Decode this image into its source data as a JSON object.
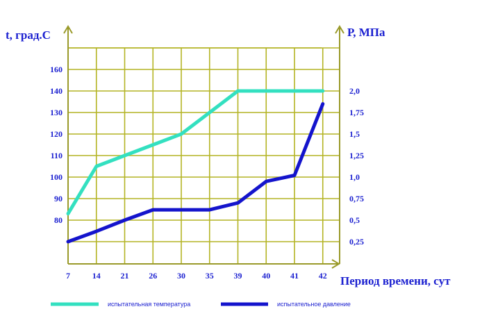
{
  "chart_data": {
    "type": "line",
    "xlabel": "Период времени, сут",
    "ylabel_left": "t, град.С",
    "ylabel_right": "Р, МПа",
    "x_ticks": [
      "7",
      "14",
      "21",
      "26",
      "30",
      "35",
      "39",
      "40",
      "41",
      "42"
    ],
    "y_left_ticks": [
      "80",
      "90",
      "100",
      "110",
      "120",
      "130",
      "140",
      "160"
    ],
    "y_right_ticks": [
      "0,25",
      "0,5",
      "0,75",
      "1,0",
      "1,25",
      "1,5",
      "1,75",
      "2,0"
    ],
    "grid": true,
    "legend_position": "bottom",
    "series": [
      {
        "name": "испытательная температура",
        "axis": "left",
        "color": "#33e0c0",
        "x": [
          "7",
          "14",
          "21",
          "26",
          "30",
          "35",
          "39",
          "40",
          "41",
          "42"
        ],
        "values": [
          83,
          105,
          110,
          115,
          120,
          130,
          140,
          140,
          140,
          140
        ]
      },
      {
        "name": "испытательное давление",
        "axis": "right",
        "color": "#1414cc",
        "x": [
          "7",
          "14",
          "21",
          "26",
          "30",
          "35",
          "39",
          "40",
          "41",
          "42"
        ],
        "values": [
          0.25,
          0.37,
          0.5,
          0.62,
          0.62,
          0.62,
          0.7,
          0.95,
          1.02,
          1.85
        ]
      }
    ]
  }
}
